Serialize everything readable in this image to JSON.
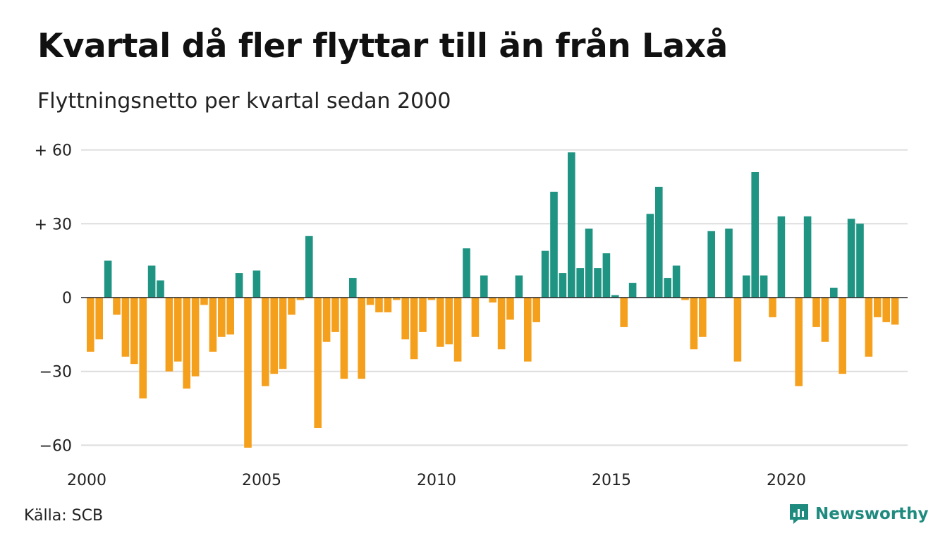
{
  "title": "Kvartal då fler flyttar till än från Laxå",
  "subtitle": "Flyttningsnetto per kvartal sedan 2000",
  "source": "Källa: SCB",
  "brand": {
    "name": "Newsworthy",
    "icon": "newsworthy-logo-icon"
  },
  "colors": {
    "positive": "#1f9483",
    "negative": "#f5a01d",
    "grid": "#dddddd",
    "zero": "#222222"
  },
  "chart_data": {
    "type": "bar",
    "x_start": 2000,
    "periods_per_year": 4,
    "xticks": [
      "2000",
      "2005",
      "2010",
      "2015",
      "2020"
    ],
    "yticks": [
      {
        "value": 60,
        "label": "+ 60"
      },
      {
        "value": 30,
        "label": "+ 30"
      },
      {
        "value": 0,
        "label": "0"
      },
      {
        "value": -30,
        "label": "−30"
      },
      {
        "value": -60,
        "label": "−60"
      }
    ],
    "ylim": [
      -62,
      62
    ],
    "grid": true,
    "values": [
      -22,
      -17,
      15,
      -7,
      -24,
      -27,
      -41,
      13,
      7,
      -30,
      -26,
      -37,
      -32,
      -3,
      -22,
      -16,
      -15,
      10,
      -61,
      11,
      -36,
      -31,
      -29,
      -7,
      -1,
      25,
      -53,
      -18,
      -14,
      -33,
      8,
      -33,
      -3,
      -6,
      -6,
      -1,
      -17,
      -25,
      -14,
      -1,
      -20,
      -19,
      -26,
      20,
      -16,
      9,
      -2,
      -21,
      -9,
      9,
      -26,
      -10,
      19,
      43,
      10,
      59,
      12,
      28,
      12,
      18,
      1,
      -12,
      6,
      0,
      34,
      45,
      8,
      13,
      -1,
      -21,
      -16,
      27,
      0,
      28,
      -26,
      9,
      51,
      9,
      -8,
      33,
      0,
      -36,
      33,
      -12,
      -18,
      4,
      -31,
      32,
      30,
      -24,
      -8,
      -10,
      -11
    ]
  }
}
